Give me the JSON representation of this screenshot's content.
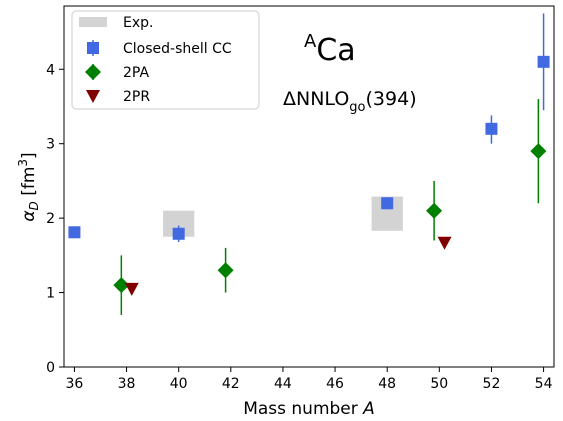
{
  "chart_data": {
    "type": "scatter",
    "xlabel_main": "Mass number ",
    "xlabel_var": "A",
    "ylabel_main": "α",
    "ylabel_sub": "D",
    "ylabel_unit": " [fm",
    "ylabel_unit_sup": "3",
    "ylabel_unit_close": "]",
    "xlim": [
      35.6,
      54.4
    ],
    "ylim": [
      0,
      4.85
    ],
    "xticks": [
      36,
      38,
      40,
      42,
      44,
      46,
      48,
      50,
      52,
      54
    ],
    "yticks": [
      0,
      1,
      2,
      3,
      4
    ],
    "annotations": {
      "nucleus_mass": "A",
      "nucleus_symbol": "Ca",
      "interaction_main": "ΔNNLO",
      "interaction_sub": "go",
      "interaction_tail": "(394)"
    },
    "legend": {
      "position": "top-left",
      "exp_label": "Exp.",
      "cc_label": "Closed-shell CC",
      "pa_label": "2PA",
      "pr_label": "2PR"
    },
    "colors": {
      "exp": "#d3d3d3",
      "cc": "#4169e1",
      "pa": "#008000",
      "pr": "#800000"
    },
    "series": [
      {
        "name": "Exp.",
        "kind": "band",
        "points": [
          {
            "A": 40,
            "x_low": 39.4,
            "x_high": 40.6,
            "y_low": 1.75,
            "y_high": 2.1
          },
          {
            "A": 48,
            "x_low": 47.4,
            "x_high": 48.6,
            "y_low": 1.83,
            "y_high": 2.29
          }
        ]
      },
      {
        "name": "Closed-shell CC",
        "kind": "square",
        "points": [
          {
            "x": 36,
            "y": 1.81,
            "err_low": 1.76,
            "err_high": 1.86
          },
          {
            "x": 40,
            "y": 1.79,
            "err_low": 1.68,
            "err_high": 1.9
          },
          {
            "x": 48,
            "y": 2.2,
            "err_low": 2.12,
            "err_high": 2.28
          },
          {
            "x": 52,
            "y": 3.2,
            "err_low": 3.0,
            "err_high": 3.38
          },
          {
            "x": 54,
            "y": 4.1,
            "err_low": 3.45,
            "err_high": 4.75
          }
        ]
      },
      {
        "name": "2PA",
        "kind": "diamond",
        "points": [
          {
            "x": 37.8,
            "y": 1.1,
            "err_low": 0.7,
            "err_high": 1.5
          },
          {
            "x": 41.8,
            "y": 1.3,
            "err_low": 1.0,
            "err_high": 1.6
          },
          {
            "x": 49.8,
            "y": 2.1,
            "err_low": 1.7,
            "err_high": 2.5
          },
          {
            "x": 53.8,
            "y": 2.9,
            "err_low": 2.2,
            "err_high": 3.6
          }
        ]
      },
      {
        "name": "2PR",
        "kind": "triangle-down",
        "points": [
          {
            "x": 38.2,
            "y": 1.05
          },
          {
            "x": 50.2,
            "y": 1.67
          }
        ]
      }
    ]
  }
}
